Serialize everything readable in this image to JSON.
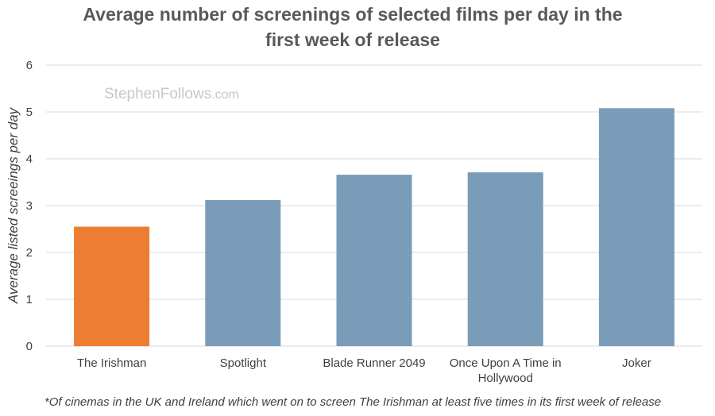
{
  "chart_data": {
    "type": "bar",
    "title": "Average number of screenings of selected films per day in the first week of release",
    "title_lines": [
      "Average number of screenings of selected films per day in the",
      "first week of release"
    ],
    "ylabel": "Average listed screeings per day",
    "xlabel": "",
    "categories": [
      "The Irishman",
      "Spotlight",
      "Blade Runner 2049",
      "Once Upon A Time in Hollywood",
      "Joker"
    ],
    "category_lines": [
      [
        "The Irishman"
      ],
      [
        "Spotlight"
      ],
      [
        "Blade Runner 2049"
      ],
      [
        "Once Upon A Time in",
        "Hollywood"
      ],
      [
        "Joker"
      ]
    ],
    "values": [
      2.55,
      3.12,
      3.66,
      3.71,
      5.08
    ],
    "bar_colors": [
      "#ed7d31",
      "#7a9cb8",
      "#7a9cb8",
      "#7a9cb8",
      "#7a9cb8"
    ],
    "ylim": [
      0,
      6
    ],
    "yticks": [
      0,
      1,
      2,
      3,
      4,
      5,
      6
    ],
    "grid": true,
    "legend": "none",
    "watermark": {
      "main": "StephenFollows",
      "suffix": ".com"
    },
    "footnote": "*Of cinemas in the UK and Ireland which went on to screen The Irishman at least five times in its first week of release"
  },
  "colors": {
    "highlight": "#ed7d31",
    "bar": "#7a9cb8",
    "grid": "#d9d9d9",
    "text": "#404040",
    "title": "#595959"
  }
}
